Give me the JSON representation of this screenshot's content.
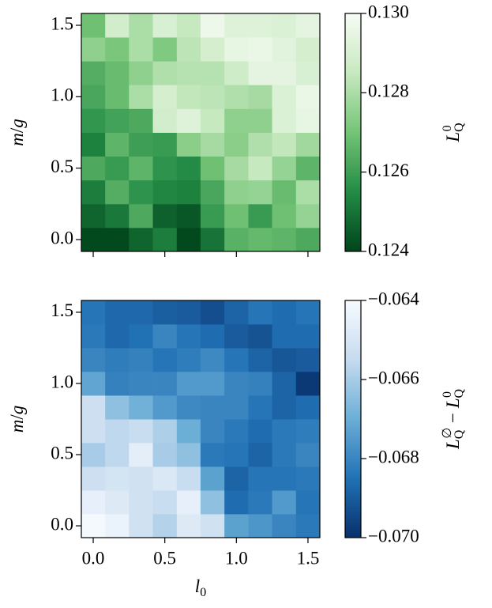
{
  "chart_data": [
    {
      "type": "heatmap",
      "ylabel": "m/g",
      "colorbar_label": "L_Q^0",
      "colors": [
        "#00441b",
        "#238b45",
        "#74c476",
        "#c7e9c0",
        "#f7fcf5"
      ],
      "x": [
        0,
        0.167,
        0.333,
        0.5,
        0.667,
        0.833,
        1.0,
        1.167,
        1.333,
        1.5
      ],
      "y": [
        0,
        0.167,
        0.333,
        0.5,
        0.667,
        0.833,
        1.0,
        1.167,
        1.333,
        1.5
      ],
      "xlim": [
        -0.083,
        1.583
      ],
      "ylim": [
        -0.083,
        1.583
      ],
      "xticks": [
        0,
        0.5,
        1.0,
        1.5
      ],
      "yticks": [
        {
          "value": 0,
          "label": "0.0"
        },
        {
          "value": 0.5,
          "label": "0.5"
        },
        {
          "value": 1.0,
          "label": "1.0"
        },
        {
          "value": 1.5,
          "label": "1.5"
        }
      ],
      "zlim": [
        0.124,
        0.13
      ],
      "zticks": [
        0.124,
        0.126,
        0.128,
        {
          "value": 0.13,
          "label": "0.130"
        }
      ],
      "z": [
        [
          0.1241,
          0.1241,
          0.1247,
          0.1252,
          0.1241,
          0.125,
          0.1265,
          0.1267,
          0.1266,
          0.1263
        ],
        [
          0.1247,
          0.1251,
          0.1263,
          0.1246,
          0.1244,
          0.1259,
          0.1269,
          0.1259,
          0.1269,
          0.1276
        ],
        [
          0.1252,
          0.1264,
          0.1257,
          0.1254,
          0.1253,
          0.1262,
          0.1275,
          0.1276,
          0.1268,
          0.128
        ],
        [
          0.1263,
          0.1259,
          0.1266,
          0.1257,
          0.1255,
          0.1269,
          0.1279,
          0.1285,
          0.1276,
          0.1266
        ],
        [
          0.1253,
          0.1266,
          0.126,
          0.1259,
          0.1274,
          0.1279,
          0.1274,
          0.1281,
          0.1284,
          0.1278
        ],
        [
          0.1258,
          0.1261,
          0.1263,
          0.1288,
          0.1292,
          0.1285,
          0.1275,
          0.1275,
          0.1291,
          0.1295
        ],
        [
          0.1262,
          0.1268,
          0.128,
          0.1289,
          0.1284,
          0.1283,
          0.1281,
          0.1279,
          0.1291,
          0.1296
        ],
        [
          0.1264,
          0.1268,
          0.1275,
          0.1281,
          0.1282,
          0.1282,
          0.1287,
          0.1294,
          0.1294,
          0.129
        ],
        [
          0.1275,
          0.1271,
          0.128,
          0.1272,
          0.1283,
          0.1289,
          0.1295,
          0.1296,
          0.1293,
          0.1289
        ],
        [
          0.1269,
          0.1288,
          0.128,
          0.129,
          0.1285,
          0.1297,
          0.1292,
          0.1292,
          0.1291,
          0.1294
        ]
      ]
    },
    {
      "type": "heatmap",
      "xlabel": "l_0",
      "ylabel": "m/g",
      "colorbar_label": "L_Q^∅ − L_Q^0",
      "colors": [
        "#08306b",
        "#2171b5",
        "#6baed6",
        "#c6dbef",
        "#f7fbff"
      ],
      "x": [
        0,
        0.167,
        0.333,
        0.5,
        0.667,
        0.833,
        1.0,
        1.167,
        1.333,
        1.5
      ],
      "y": [
        0,
        0.167,
        0.333,
        0.5,
        0.667,
        0.833,
        1.0,
        1.167,
        1.333,
        1.5
      ],
      "xlim": [
        -0.083,
        1.583
      ],
      "ylim": [
        -0.083,
        1.583
      ],
      "xticks": [
        {
          "value": 0,
          "label": "0.0"
        },
        {
          "value": 0.5,
          "label": "0.5"
        },
        {
          "value": 1.0,
          "label": "1.0"
        },
        {
          "value": 1.5,
          "label": "1.5"
        }
      ],
      "yticks": [
        {
          "value": 0,
          "label": "0.0"
        },
        {
          "value": 0.5,
          "label": "0.5"
        },
        {
          "value": 1.0,
          "label": "1.0"
        },
        {
          "value": 1.5,
          "label": "1.5"
        }
      ],
      "zlim": [
        -0.07,
        -0.064
      ],
      "zticks": [
        {
          "value": -0.07,
          "label": "−0.070"
        },
        {
          "value": -0.068,
          "label": "−0.068"
        },
        {
          "value": -0.066,
          "label": "−0.066"
        },
        {
          "value": -0.064,
          "label": "−0.064"
        }
      ],
      "z": [
        [
          -0.0641,
          -0.0644,
          -0.0652,
          -0.0658,
          -0.0648,
          -0.0652,
          -0.0673,
          -0.0676,
          -0.068,
          -0.0683
        ],
        [
          -0.0645,
          -0.0648,
          -0.0652,
          -0.0654,
          -0.0645,
          -0.0664,
          -0.0686,
          -0.0683,
          -0.0675,
          -0.0684
        ],
        [
          -0.0653,
          -0.0651,
          -0.0652,
          -0.0649,
          -0.0654,
          -0.0673,
          -0.0688,
          -0.0684,
          -0.0684,
          -0.0683
        ],
        [
          -0.066,
          -0.0656,
          -0.0646,
          -0.066,
          -0.0664,
          -0.0683,
          -0.0684,
          -0.0688,
          -0.0683,
          -0.068
        ],
        [
          -0.0653,
          -0.0656,
          -0.0654,
          -0.0659,
          -0.067,
          -0.068,
          -0.0683,
          -0.0686,
          -0.0683,
          -0.0682
        ],
        [
          -0.0653,
          -0.0664,
          -0.0669,
          -0.0675,
          -0.0679,
          -0.068,
          -0.068,
          -0.0684,
          -0.0688,
          -0.0686
        ],
        [
          -0.0672,
          -0.0681,
          -0.068,
          -0.068,
          -0.0675,
          -0.0675,
          -0.068,
          -0.0681,
          -0.0688,
          -0.0698
        ],
        [
          -0.068,
          -0.0682,
          -0.0681,
          -0.0684,
          -0.0682,
          -0.0679,
          -0.0684,
          -0.0688,
          -0.0691,
          -0.069
        ],
        [
          -0.0683,
          -0.0687,
          -0.0685,
          -0.068,
          -0.0684,
          -0.0686,
          -0.069,
          -0.0692,
          -0.0686,
          -0.0686
        ],
        [
          -0.0684,
          -0.0687,
          -0.0687,
          -0.0689,
          -0.069,
          -0.0693,
          -0.0688,
          -0.0684,
          -0.0686,
          -0.0684
        ]
      ]
    }
  ]
}
